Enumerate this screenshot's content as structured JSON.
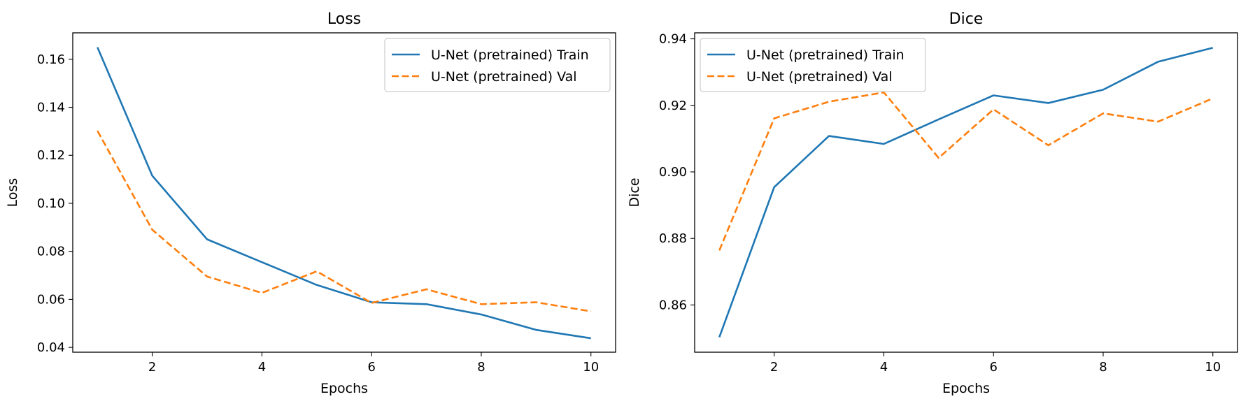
{
  "chart_data": [
    {
      "type": "line",
      "title": "Loss",
      "xlabel": "Epochs",
      "ylabel": "Loss",
      "x": [
        1,
        2,
        3,
        4,
        5,
        6,
        7,
        8,
        9,
        10
      ],
      "xlim": [
        0.55,
        10.45
      ],
      "ylim": [
        0.038,
        0.171
      ],
      "xticks": [
        2,
        4,
        6,
        8,
        10
      ],
      "yticks": [
        0.04,
        0.06,
        0.08,
        0.1,
        0.12,
        0.14,
        0.16
      ],
      "ytick_decimals": 2,
      "grid": false,
      "legend_position": "upper right",
      "series": [
        {
          "name": "U-Net (pretrained) Train",
          "color": "#1f77b4",
          "style": "solid",
          "values": [
            0.165,
            0.1115,
            0.085,
            0.0755,
            0.066,
            0.0588,
            0.058,
            0.0537,
            0.0473,
            0.0438
          ]
        },
        {
          "name": "U-Net (pretrained) Val",
          "color": "#ff7f0e",
          "style": "dashed",
          "values": [
            0.1302,
            0.089,
            0.0695,
            0.0627,
            0.0717,
            0.0585,
            0.0642,
            0.058,
            0.0588,
            0.055
          ]
        }
      ]
    },
    {
      "type": "line",
      "title": "Dice",
      "xlabel": "Epochs",
      "ylabel": "Dice",
      "x": [
        1,
        2,
        3,
        4,
        5,
        6,
        7,
        8,
        9,
        10
      ],
      "xlim": [
        0.55,
        10.45
      ],
      "ylim": [
        0.8458,
        0.9418
      ],
      "xticks": [
        2,
        4,
        6,
        8,
        10
      ],
      "yticks": [
        0.86,
        0.88,
        0.9,
        0.92,
        0.94
      ],
      "ytick_decimals": 2,
      "grid": false,
      "legend_position": "upper left",
      "series": [
        {
          "name": "U-Net (pretrained) Train",
          "color": "#1f77b4",
          "style": "solid",
          "values": [
            0.8503,
            0.8954,
            0.9108,
            0.9084,
            0.9158,
            0.923,
            0.9207,
            0.9247,
            0.9331,
            0.9373
          ]
        },
        {
          "name": "U-Net (pretrained) Val",
          "color": "#ff7f0e",
          "style": "dashed",
          "values": [
            0.8764,
            0.9161,
            0.9211,
            0.9239,
            0.9042,
            0.9188,
            0.908,
            0.9176,
            0.9151,
            0.9221
          ]
        }
      ]
    }
  ]
}
